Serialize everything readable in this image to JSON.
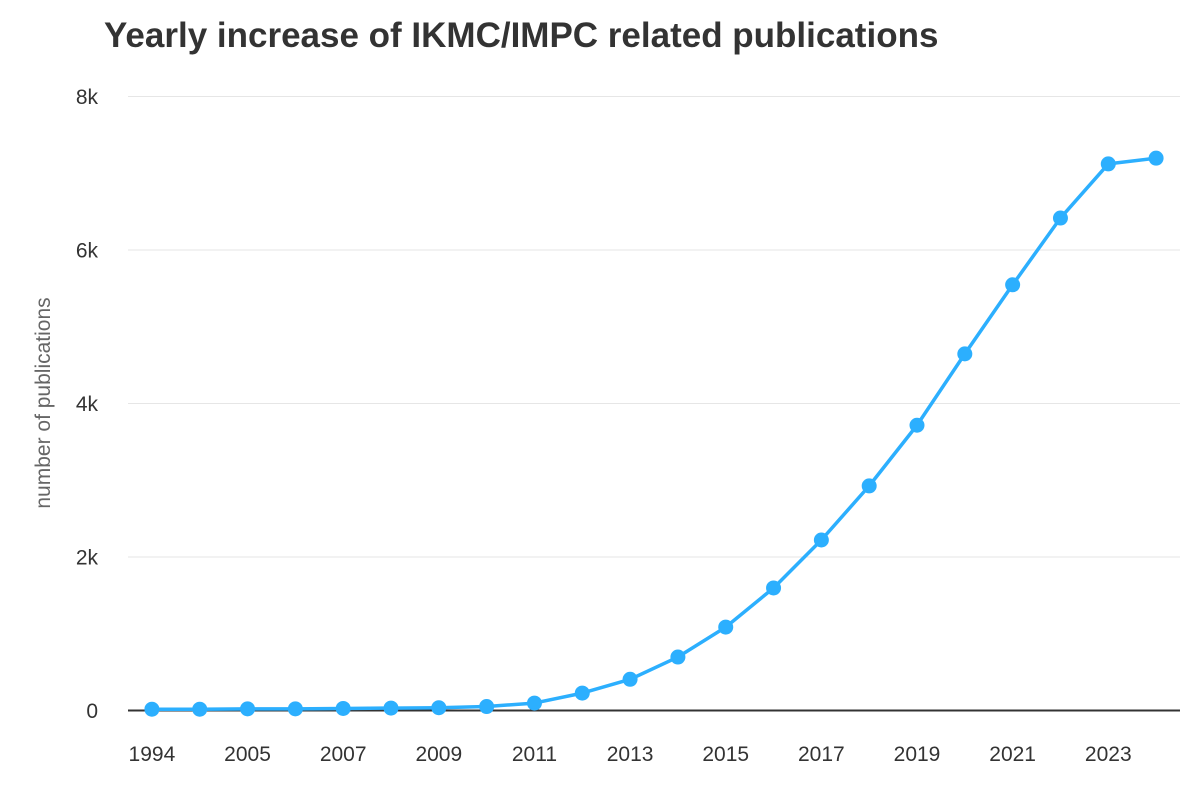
{
  "chart_data": {
    "type": "line",
    "title": "Yearly increase of IKMC/IMPC related publications",
    "xlabel": "",
    "ylabel": "number of publications",
    "categories": [
      "1994",
      "2004",
      "2005",
      "2006",
      "2007",
      "2008",
      "2009",
      "2010",
      "2011",
      "2012",
      "2013",
      "2014",
      "2015",
      "2016",
      "2017",
      "2018",
      "2019",
      "2020",
      "2021",
      "2022",
      "2023",
      "2024"
    ],
    "x_tick_labels": [
      "1994",
      "2005",
      "2007",
      "2009",
      "2011",
      "2013",
      "2015",
      "2017",
      "2019",
      "2021",
      "2023"
    ],
    "values": [
      10,
      10,
      15,
      15,
      20,
      25,
      30,
      45,
      90,
      220,
      400,
      690,
      1080,
      1590,
      2215,
      2920,
      3710,
      4640,
      5540,
      6410,
      7115,
      7190
    ],
    "ylim": [
      0,
      8000
    ],
    "y_ticks": [
      0,
      2000,
      4000,
      6000,
      8000
    ],
    "y_tick_labels": [
      "0",
      "2k",
      "4k",
      "6k",
      "8k"
    ],
    "grid": true,
    "legend": "none",
    "color": "#2caffe"
  }
}
